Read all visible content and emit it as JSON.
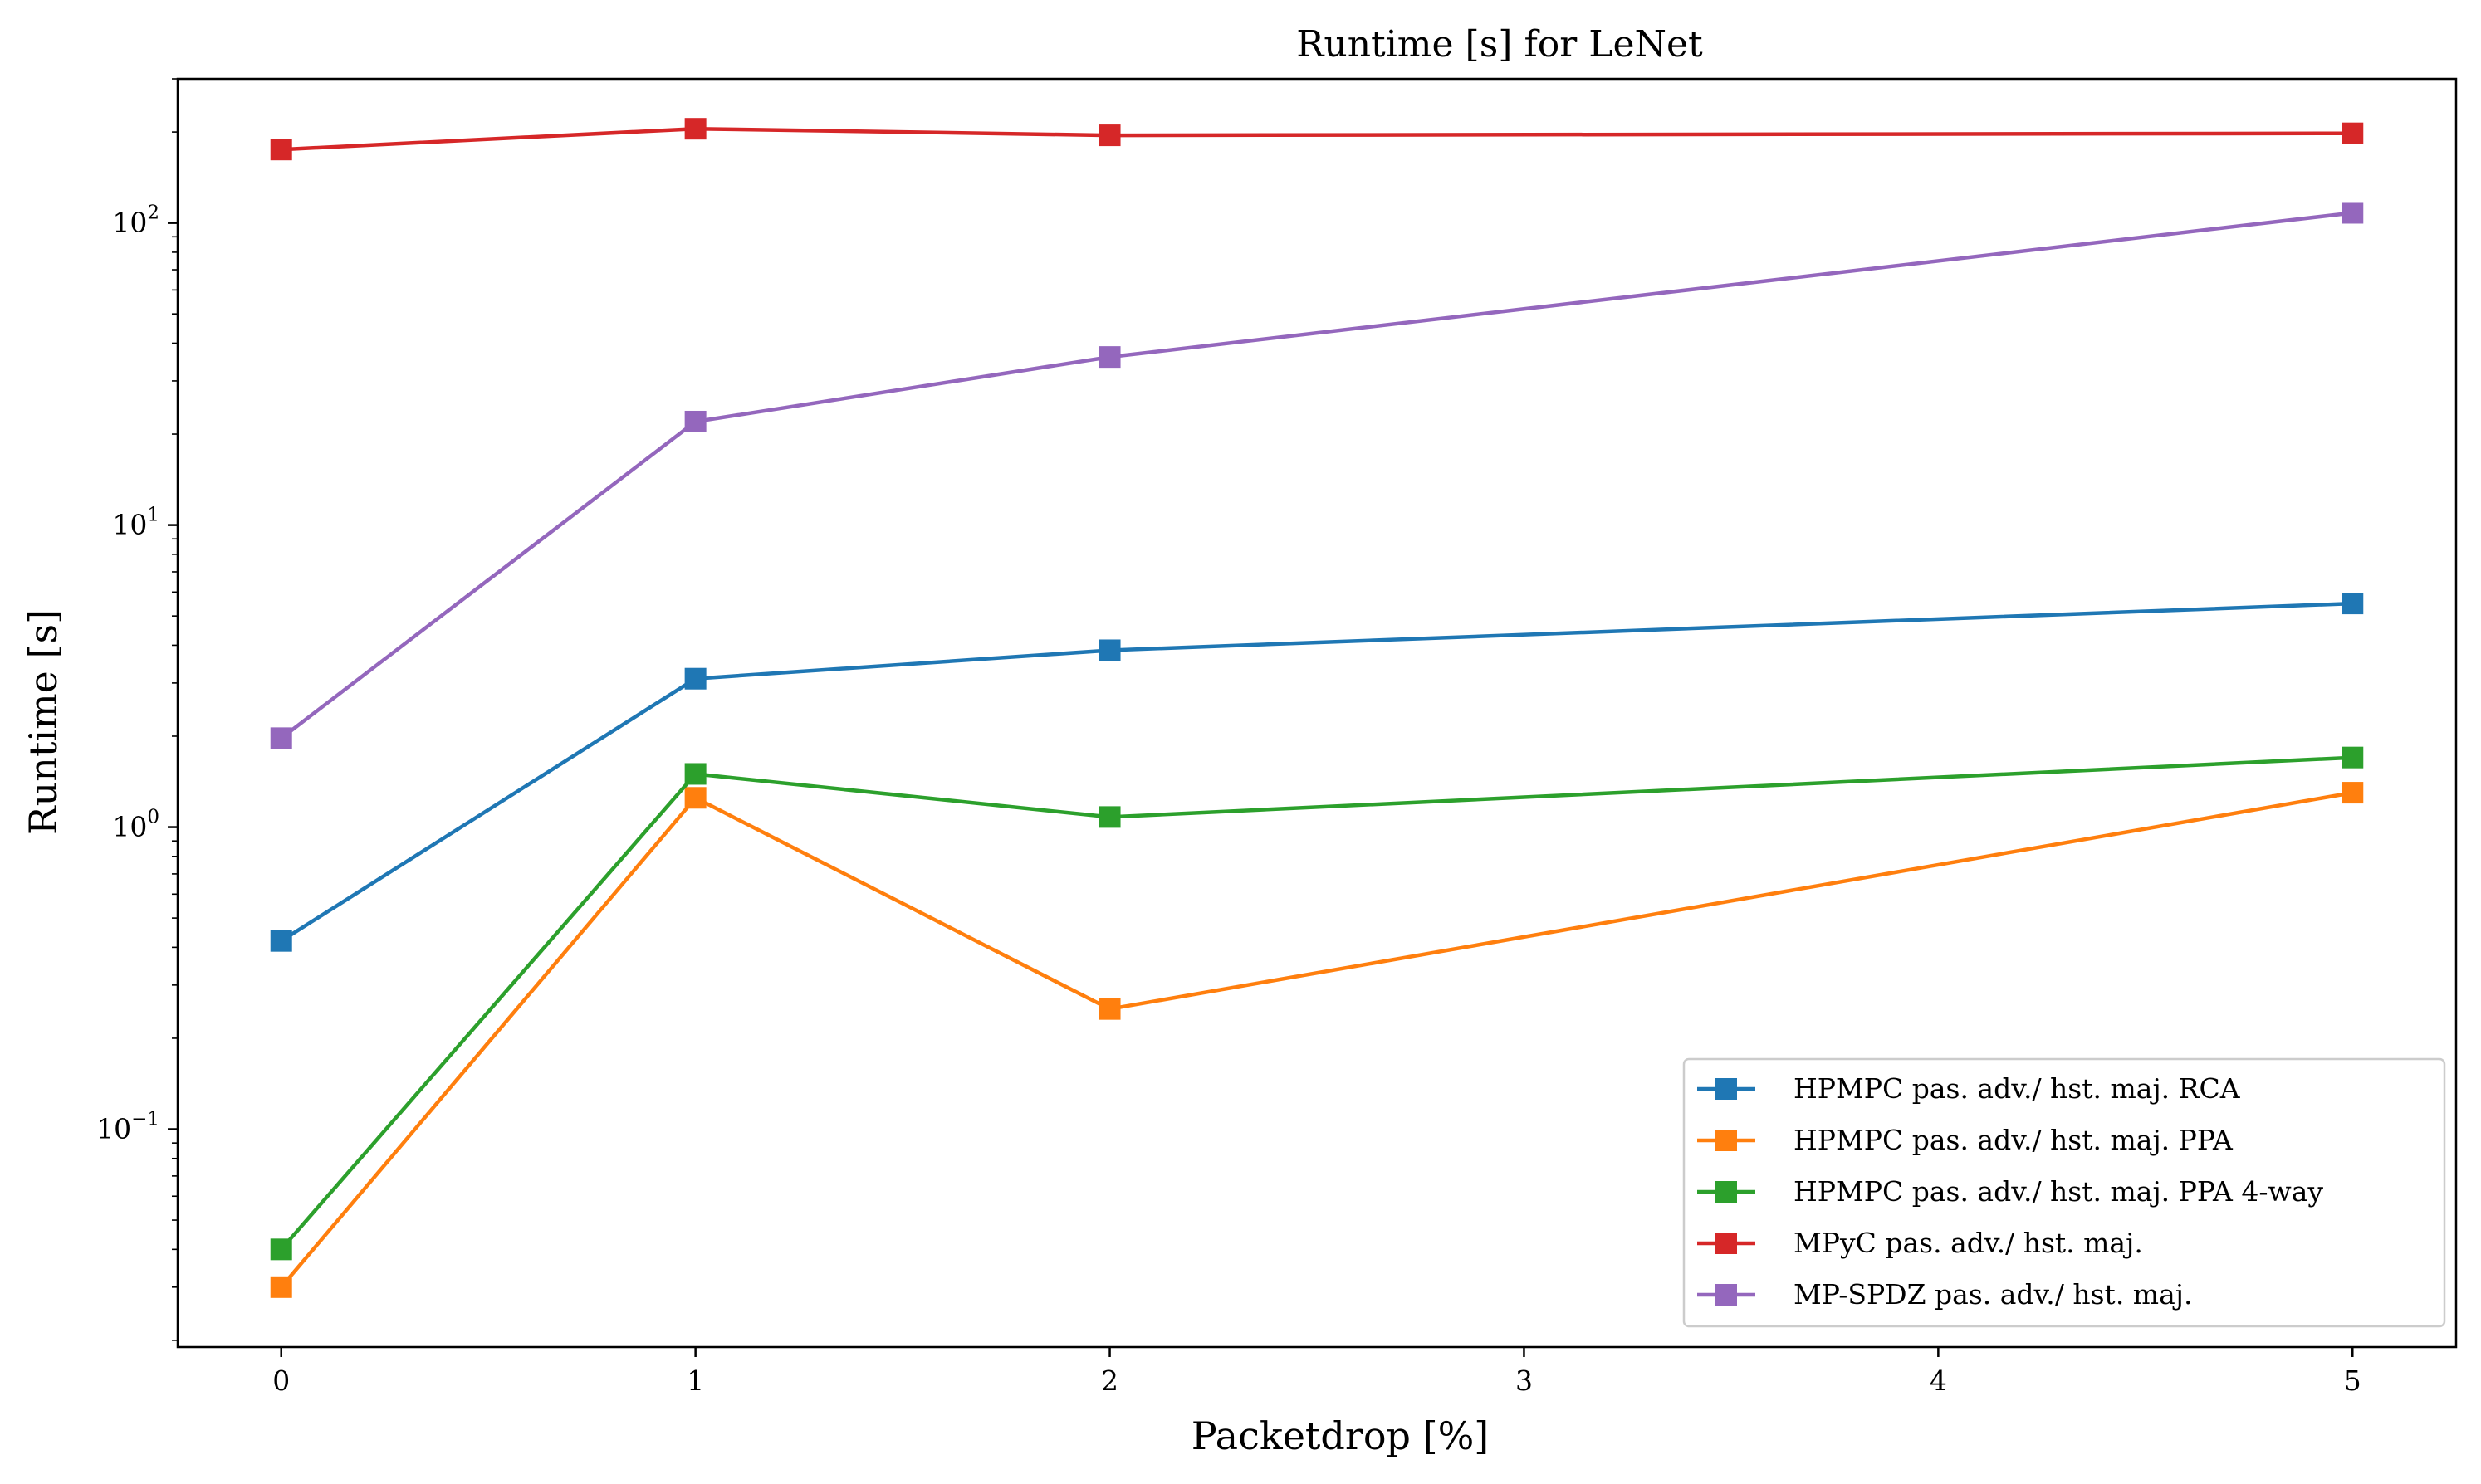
{
  "chart_data": {
    "type": "line",
    "title": "Runtime [s] for LeNet",
    "xlabel": "Packetdrop [%]",
    "ylabel": "Runtime [s]",
    "xlim": [
      -0.25,
      5.25
    ],
    "ylim": [
      0.019,
      300
    ],
    "yscale": "log",
    "x_ticks": [
      0,
      1,
      2,
      3,
      4,
      5
    ],
    "x_tick_labels": [
      "0",
      "1",
      "2",
      "3",
      "4",
      "5"
    ],
    "y_ticks": [
      0.1,
      1,
      10,
      100
    ],
    "y_tick_labels": [
      {
        "base": "10",
        "exp": "−1"
      },
      {
        "base": "10",
        "exp": "0"
      },
      {
        "base": "10",
        "exp": "1"
      },
      {
        "base": "10",
        "exp": "2"
      }
    ],
    "grid": false,
    "legend_position": "lower-right",
    "x": [
      0,
      1,
      2,
      5
    ],
    "series": [
      {
        "name": "HPMPC pas. adv./ hst. maj. RCA",
        "color": "#1f77b4",
        "values": [
          0.42,
          3.1,
          3.85,
          5.5
        ]
      },
      {
        "name": "HPMPC pas. adv./ hst. maj. PPA",
        "color": "#ff7f0e",
        "values": [
          0.03,
          1.25,
          0.25,
          1.3
        ]
      },
      {
        "name": "HPMPC pas. adv./ hst. maj. PPA 4-way",
        "color": "#2ca02c",
        "values": [
          0.04,
          1.5,
          1.08,
          1.7
        ]
      },
      {
        "name": "MPyC pas. adv./ hst. maj.",
        "color": "#d62728",
        "values": [
          175,
          205,
          195,
          198
        ]
      },
      {
        "name": "MP-SPDZ pas. adv./ hst. maj.",
        "color": "#9467bd",
        "values": [
          1.97,
          22,
          36,
          108
        ]
      }
    ],
    "marker": "square"
  }
}
